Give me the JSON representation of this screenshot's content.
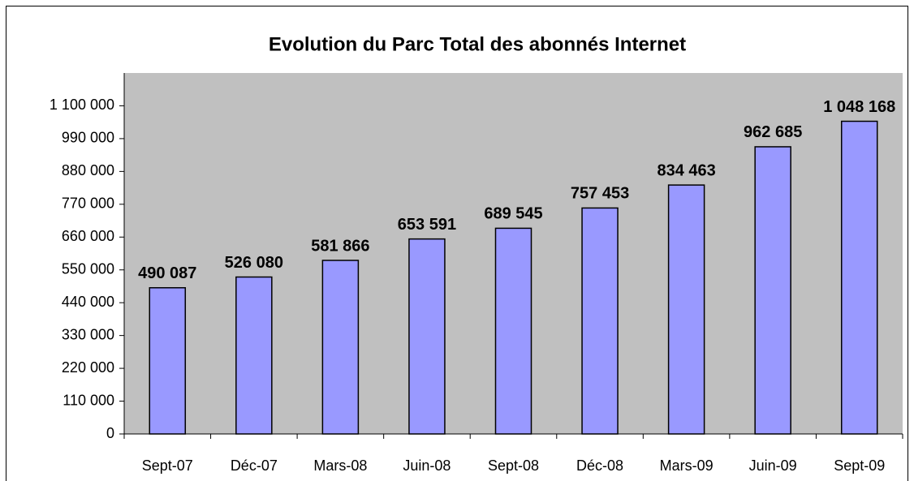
{
  "chart_data": {
    "type": "bar",
    "title": "Evolution du Parc Total des abonnés Internet",
    "categories": [
      "Sept-07",
      "Déc-07",
      "Mars-08",
      "Juin-08",
      "Sept-08",
      "Déc-08",
      "Mars-09",
      "Juin-09",
      "Sept-09"
    ],
    "values": [
      490087,
      526080,
      581866,
      653591,
      689545,
      757453,
      834463,
      962685,
      1048168
    ],
    "value_labels": [
      "490 087",
      "526 080",
      "581 866",
      "653 591",
      "689 545",
      "757 453",
      "834 463",
      "962 685",
      "1 048 168"
    ],
    "color": "#9999ff",
    "ylim": [
      0,
      1210000
    ],
    "yticks": [
      0,
      {
        "value": 110000,
        "label": "110 000"
      },
      {
        "value": 220000,
        "label": "220 000"
      },
      {
        "value": 330000,
        "label": "330 000"
      },
      {
        "value": 440000,
        "label": "440 000"
      },
      {
        "value": 550000,
        "label": "550 000"
      },
      {
        "value": 660000,
        "label": "660 000"
      },
      {
        "value": 770000,
        "label": "770 000"
      },
      {
        "value": 880000,
        "label": "880 000"
      },
      {
        "value": 990000,
        "label": "990 000"
      },
      {
        "value": 1100000,
        "label": "1 100 000"
      }
    ],
    "grid": false
  }
}
